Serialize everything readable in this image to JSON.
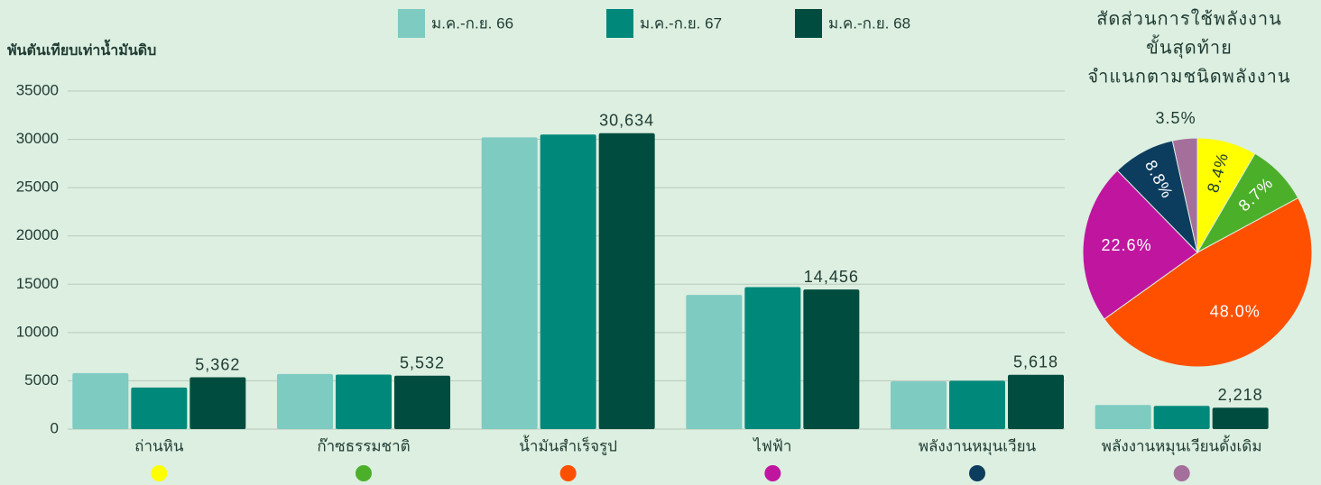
{
  "chart_data": [
    {
      "type": "bar",
      "y_label": "พันตันเทียบเท่าน้ำมันดิบ",
      "categories": [
        "ถ่านหิน",
        "ก๊าซธรรมชาติ",
        "น้ำมันสำเร็จรูป",
        "ไฟฟ้า",
        "พลังงานหมุนเวียน",
        "พลังงานหมุนเวียนดั้งเดิม"
      ],
      "series": [
        {
          "name": "ม.ค.-ก.ย. 66",
          "color": "#7ecbc2",
          "values": [
            5800,
            5700,
            30200,
            13900,
            4950,
            2500
          ]
        },
        {
          "name": "ม.ค.-ก.ย. 67",
          "color": "#00897b",
          "values": [
            4300,
            5650,
            30500,
            14700,
            5000,
            2400
          ]
        },
        {
          "name": "ม.ค.-ก.ย. 68",
          "color": "#004d40",
          "values": [
            5362,
            5532,
            30634,
            14456,
            5618,
            2218
          ],
          "value_labels": [
            "5,362",
            "5,532",
            "30,634",
            "14,456",
            "5,618",
            "2,218"
          ]
        }
      ],
      "ylim": [
        0,
        35000
      ],
      "yticks": [
        0,
        5000,
        10000,
        15000,
        20000,
        25000,
        30000,
        35000
      ],
      "grid": true
    },
    {
      "type": "pie",
      "title": [
        "สัดส่วนการใช้พลังงาน",
        "ขั้นสุดท้าย",
        "จำแนกตามชนิดพลังงาน"
      ],
      "values": [
        8.4,
        8.7,
        48.0,
        22.6,
        8.8,
        3.5
      ],
      "value_labels": [
        "8.4%",
        "8.7%",
        "48.0%",
        "22.6%",
        "8.8%",
        "3.5%"
      ],
      "colors": [
        "#ffff00",
        "#4caf2a",
        "#ff5000",
        "#c0169f",
        "#0d3d5e",
        "#a56f9c"
      ]
    }
  ]
}
